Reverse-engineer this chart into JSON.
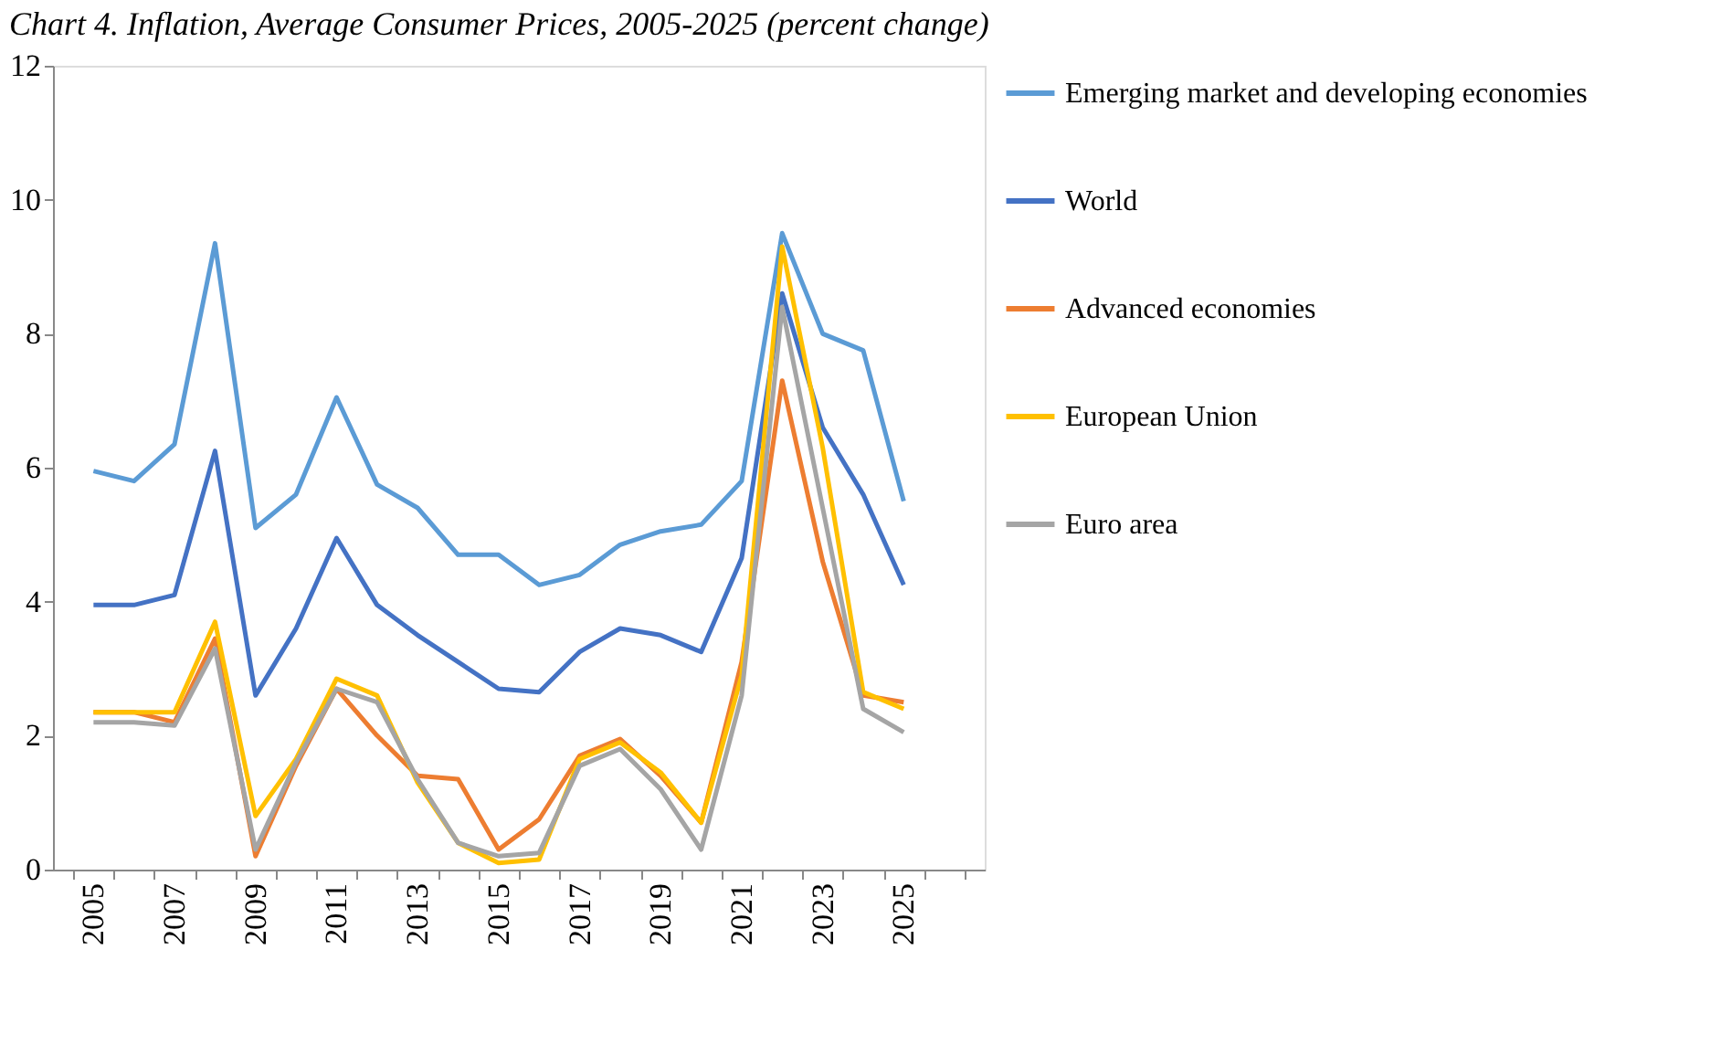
{
  "chart_data": {
    "type": "line",
    "title": "Chart 4. Inflation, Average Consumer Prices, 2005-2025 (percent change)",
    "categories": [
      "2005",
      null,
      "2007",
      null,
      "2009",
      null,
      "2011",
      null,
      "2013",
      null,
      "2015",
      null,
      "2017",
      null,
      "2019",
      null,
      "2021",
      null,
      "2023",
      null,
      "2025",
      null
    ],
    "series": [
      {
        "name": "Emerging market and developing economies",
        "color": "#5b9bd5",
        "values": [
          5.95,
          5.8,
          6.35,
          9.35,
          5.1,
          5.6,
          7.05,
          5.75,
          5.4,
          4.7,
          4.7,
          4.25,
          4.4,
          4.85,
          5.05,
          5.15,
          5.8,
          9.5,
          8.0,
          7.75,
          5.5,
          null
        ]
      },
      {
        "name": "World",
        "color": "#4472c4",
        "values": [
          3.95,
          3.95,
          4.1,
          6.25,
          2.6,
          3.6,
          4.95,
          3.95,
          3.5,
          3.1,
          2.7,
          2.65,
          3.25,
          3.6,
          3.5,
          3.25,
          4.65,
          8.6,
          6.6,
          5.6,
          4.25,
          null
        ]
      },
      {
        "name": "Advanced economies",
        "color": "#ed7d31",
        "values": [
          2.35,
          2.35,
          2.2,
          3.45,
          0.2,
          1.55,
          2.7,
          2.0,
          1.4,
          1.35,
          0.3,
          0.75,
          1.7,
          1.95,
          1.4,
          0.7,
          3.1,
          7.3,
          4.6,
          2.6,
          2.5,
          null
        ]
      },
      {
        "name": "European Union",
        "color": "#ffc000",
        "values": [
          2.35,
          2.35,
          2.35,
          3.7,
          0.8,
          1.65,
          2.85,
          2.6,
          1.3,
          0.4,
          0.1,
          0.15,
          1.65,
          1.9,
          1.45,
          0.7,
          2.9,
          9.3,
          6.3,
          2.65,
          2.4,
          null
        ]
      },
      {
        "name": "Euro area",
        "color": "#a5a5a5",
        "values": [
          2.2,
          2.2,
          2.15,
          3.3,
          0.3,
          1.6,
          2.7,
          2.5,
          1.35,
          0.4,
          0.2,
          0.25,
          1.55,
          1.8,
          1.2,
          0.3,
          2.6,
          8.4,
          5.4,
          2.4,
          2.05,
          null
        ]
      }
    ],
    "ylim": [
      0,
      12
    ],
    "yticks": [
      0,
      2,
      4,
      6,
      8,
      10,
      12
    ],
    "grid": false,
    "legend": "right",
    "marker": "none",
    "line_style": "solid"
  }
}
